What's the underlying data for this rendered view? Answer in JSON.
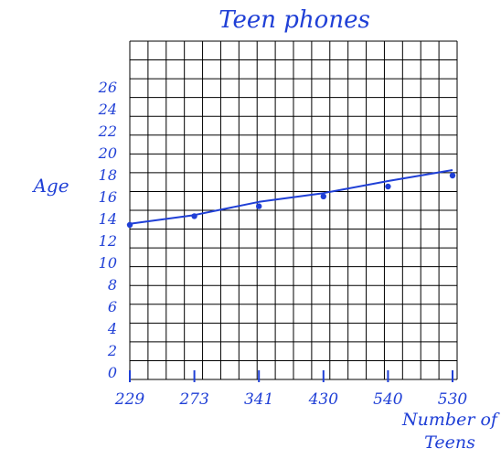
{
  "chart_data": {
    "type": "line",
    "title": "Teen phones",
    "xlabel_line1": "Number of",
    "xlabel_line2": "Teens",
    "ylabel": "Age",
    "x_tick_labels": [
      "229",
      "273",
      "341",
      "430",
      "540",
      "530"
    ],
    "y_ticks": [
      0,
      2,
      4,
      6,
      8,
      10,
      12,
      14,
      16,
      18,
      20,
      22,
      24,
      26
    ],
    "ylim": [
      0,
      28
    ],
    "grid": true,
    "points": [
      {
        "x": "229",
        "y": 13.5
      },
      {
        "x": "273",
        "y": 14.3
      },
      {
        "x": "341",
        "y": 15.2
      },
      {
        "x": "430",
        "y": 16.1
      },
      {
        "x": "540",
        "y": 17.0
      },
      {
        "x": "530",
        "y": 18.0
      }
    ],
    "trend_line": [
      {
        "x": "229",
        "y": 13.6
      },
      {
        "x": "273",
        "y": 14.4
      },
      {
        "x": "341",
        "y": 15.6
      },
      {
        "x": "430",
        "y": 16.4
      },
      {
        "x": "540",
        "y": 17.5
      },
      {
        "x": "530",
        "y": 18.5
      }
    ]
  },
  "colors": {
    "ink": "#1f3fd6",
    "grid": "#000000"
  }
}
